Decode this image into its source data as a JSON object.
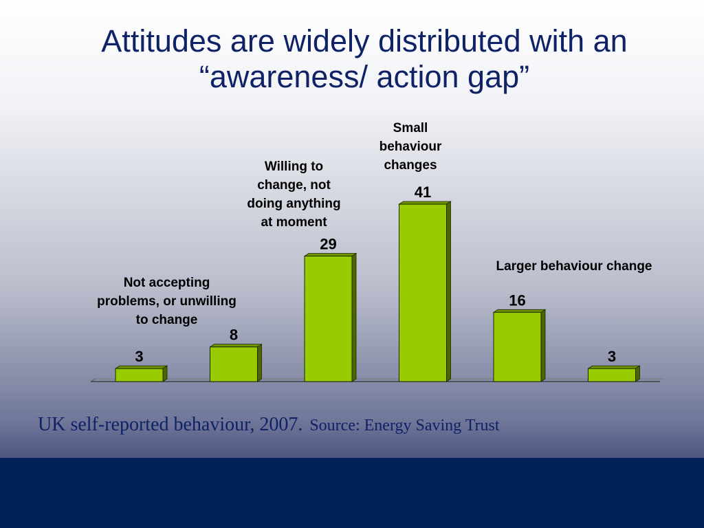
{
  "slide": {
    "title_lines": [
      "Attitudes are widely distributed with an",
      "“awareness/ action gap”"
    ],
    "caption_main": "UK self-reported behaviour, 2007.",
    "caption_source": "Source: Energy Saving Trust"
  },
  "annotations": {
    "not_accepting": [
      "Not accepting",
      "problems, or unwilling",
      "to change"
    ],
    "willing": [
      "Willing to",
      "change, not",
      "doing anything",
      "at moment"
    ],
    "small": [
      "Small",
      "behaviour",
      "changes"
    ],
    "larger": [
      "Larger behaviour change"
    ]
  },
  "colors": {
    "title": "#0f2266",
    "bar_front": "#99cc00",
    "bar_side": "#4d6600",
    "bar_top": "#6f9400",
    "footer": "#00215a"
  },
  "chart_data": {
    "type": "bar",
    "categories": [
      "",
      "",
      "",
      "",
      "",
      ""
    ],
    "values": [
      3,
      8,
      29,
      41,
      16,
      3
    ],
    "title": "",
    "xlabel": "",
    "ylabel": "",
    "ylim": [
      0,
      41
    ],
    "grid": false,
    "legend": "none",
    "style": "3d"
  }
}
